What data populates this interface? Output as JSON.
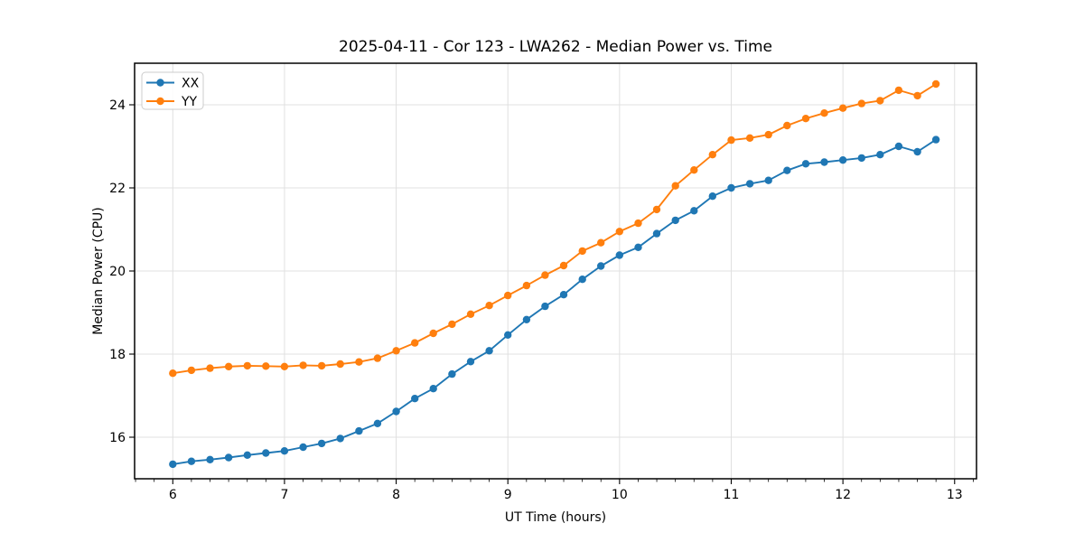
{
  "chart_data": {
    "type": "line",
    "title": "2025-04-11 - Cor 123 - LWA262 - Median Power vs. Time",
    "xlabel": "UT Time (hours)",
    "ylabel": "Median Power (CPU)",
    "grid": true,
    "legend_position": "upper-left",
    "xlim": [
      5.658,
      13.196
    ],
    "ylim": [
      15.0,
      25.0
    ],
    "xticks": [
      6,
      7,
      8,
      9,
      10,
      11,
      12,
      13
    ],
    "yticks": [
      16,
      18,
      20,
      22,
      24
    ],
    "x_minor_interval_hours": 0.1667,
    "x": [
      6.0,
      6.167,
      6.333,
      6.5,
      6.667,
      6.833,
      7.0,
      7.167,
      7.333,
      7.5,
      7.667,
      7.833,
      8.0,
      8.167,
      8.333,
      8.5,
      8.667,
      8.833,
      9.0,
      9.167,
      9.333,
      9.5,
      9.667,
      9.833,
      10.0,
      10.167,
      10.333,
      10.5,
      10.667,
      10.833,
      11.0,
      11.167,
      11.333,
      11.5,
      11.667,
      11.833,
      12.0,
      12.167,
      12.333,
      12.5,
      12.667,
      12.833
    ],
    "series": [
      {
        "name": "XX",
        "color": "#1f77b4",
        "values": [
          15.35,
          15.42,
          15.46,
          15.51,
          15.57,
          15.62,
          15.67,
          15.76,
          15.85,
          15.97,
          16.15,
          16.33,
          16.62,
          16.93,
          17.17,
          17.52,
          17.82,
          18.08,
          18.46,
          18.83,
          19.15,
          19.43,
          19.8,
          20.12,
          20.38,
          20.57,
          20.9,
          21.22,
          21.45,
          21.8,
          22.0,
          22.1,
          22.18,
          22.42,
          22.58,
          22.62,
          22.67,
          22.72,
          22.8,
          23.0,
          22.87,
          23.16
        ]
      },
      {
        "name": "YY",
        "color": "#ff7f0e",
        "values": [
          17.54,
          17.61,
          17.66,
          17.7,
          17.72,
          17.71,
          17.7,
          17.73,
          17.72,
          17.76,
          17.81,
          17.9,
          18.08,
          18.27,
          18.5,
          18.72,
          18.96,
          19.17,
          19.41,
          19.65,
          19.9,
          20.13,
          20.48,
          20.68,
          20.95,
          21.15,
          21.48,
          22.05,
          22.43,
          22.8,
          23.15,
          23.2,
          23.28,
          23.5,
          23.67,
          23.8,
          23.92,
          24.03,
          24.1,
          24.35,
          24.22,
          24.5
        ]
      }
    ]
  }
}
